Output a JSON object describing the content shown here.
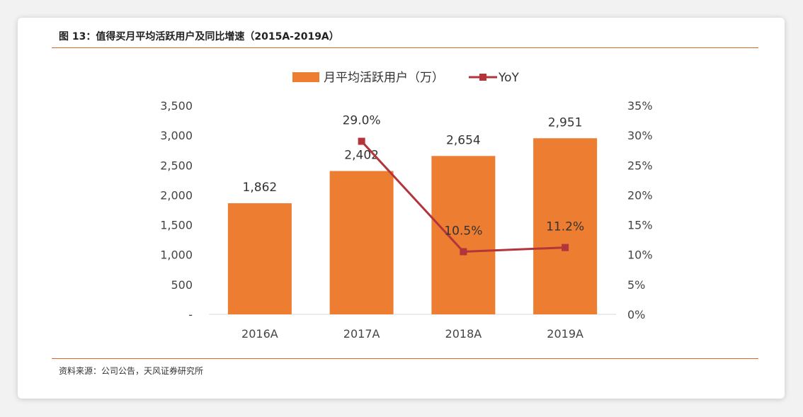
{
  "figure": {
    "title": "图 13：值得买月平均活跃用户及同比增速（2015A-2019A）",
    "source": "资料来源：公司公告，天风证券研究所"
  },
  "chart_data": {
    "type": "bar",
    "categories": [
      "2016A",
      "2017A",
      "2018A",
      "2019A"
    ],
    "series": [
      {
        "name": "月平均活跃用户（万）",
        "type": "bar",
        "axis": "left",
        "values": [
          1862,
          2402,
          2654,
          2951
        ],
        "labels": [
          "1,862",
          "2,402",
          "2,654",
          "2,951"
        ],
        "color": "#ed7d31"
      },
      {
        "name": "YoY",
        "type": "line",
        "axis": "right",
        "values": [
          null,
          29.0,
          10.5,
          11.2
        ],
        "labels": [
          "",
          "29.0%",
          "10.5%",
          "11.2%"
        ],
        "color": "#b3343a"
      }
    ],
    "y_left": {
      "lim": [
        0,
        3500
      ],
      "ticks": [
        0,
        500,
        1000,
        1500,
        2000,
        2500,
        3000,
        3500
      ],
      "tick_labels": [
        "-",
        "500",
        "1,000",
        "1,500",
        "2,000",
        "2,500",
        "3,000",
        "3,500"
      ]
    },
    "y_right": {
      "lim": [
        0,
        35
      ],
      "ticks": [
        0,
        5,
        10,
        15,
        20,
        25,
        30,
        35
      ],
      "tick_labels": [
        "0%",
        "5%",
        "10%",
        "15%",
        "20%",
        "25%",
        "30%",
        "35%"
      ]
    },
    "grid": false,
    "legend_position": "top-center"
  }
}
